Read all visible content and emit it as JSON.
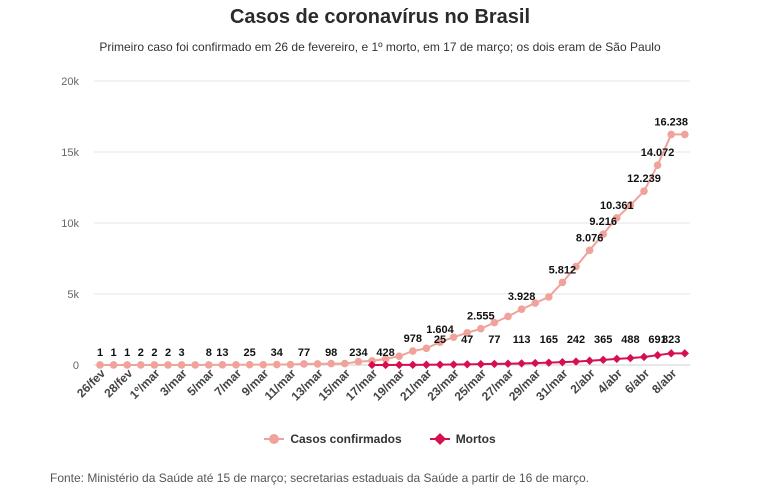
{
  "chart_data": {
    "type": "line",
    "title": "Casos de coronavírus no Brasil",
    "subtitle": "Primeiro caso foi confirmado em 26 de fevereiro, e 1º morto, em 17 de março; os dois eram de São Paulo",
    "source": "Fonte: Ministério da Saúde até 15 de março; secretarias estaduais da Saúde a partir de 16 de março.",
    "y_ticks": [
      "0",
      "5k",
      "10k",
      "15k",
      "20k"
    ],
    "y_tick_values": [
      0,
      5000,
      10000,
      15000,
      20000
    ],
    "ylim": [
      0,
      20000
    ],
    "x_tick_labels": [
      "26/fev",
      "28/fev",
      "1º/mar",
      "3/mar",
      "5/mar",
      "7/mar",
      "9/mar",
      "11/mar",
      "13/mar",
      "15/mar",
      "17/mar",
      "19/mar",
      "21/mar",
      "23/mar",
      "25/mar",
      "27/mar",
      "29/mar",
      "31/mar",
      "2/abr",
      "4/abr",
      "6/abr",
      "8/abr"
    ],
    "grid": true,
    "legend_position": "bottom",
    "series": [
      {
        "name": "Casos confirmados",
        "color": "#f0a39b",
        "marker": "circle",
        "start_index": 0,
        "values": [
          1,
          1,
          1,
          2,
          2,
          2,
          3,
          3,
          8,
          13,
          13,
          25,
          25,
          34,
          34,
          77,
          77,
          98,
          98,
          234,
          291,
          428,
          621,
          978,
          1178,
          1604,
          1960,
          2271,
          2555,
          2985,
          3417,
          3928,
          4361,
          4795,
          5812,
          6931,
          8076,
          9216,
          10361,
          11254,
          12239,
          14072,
          16238,
          16238
        ],
        "labels": {
          "0": "1",
          "1": "1",
          "2": "1",
          "3": "2",
          "4": "2",
          "5": "2",
          "6": "3",
          "8": "8",
          "9": "13",
          "11": "25",
          "13": "34",
          "15": "77",
          "17": "98",
          "19": "234",
          "21": "428",
          "23": "978",
          "25": "1.604",
          "28": "2.555",
          "31": "3.928",
          "34": "5.812",
          "36": "8.076",
          "37": "9.216",
          "38": "10.361",
          "40": "12.239",
          "41": "14.072",
          "42": "16.238"
        }
      },
      {
        "name": "Mortos",
        "color": "#d6104f",
        "marker": "diamond",
        "start_index": 20,
        "values": [
          1,
          4,
          6,
          11,
          18,
          25,
          34,
          47,
          59,
          77,
          92,
          113,
          136,
          165,
          201,
          242,
          299,
          365,
          432,
          488,
          566,
          691,
          823,
          823
        ],
        "labels": {
          "25": "25",
          "27": "47",
          "29": "77",
          "31": "113",
          "33": "165",
          "35": "242",
          "37": "365",
          "39": "488",
          "41": "691",
          "42": "823"
        }
      }
    ]
  }
}
